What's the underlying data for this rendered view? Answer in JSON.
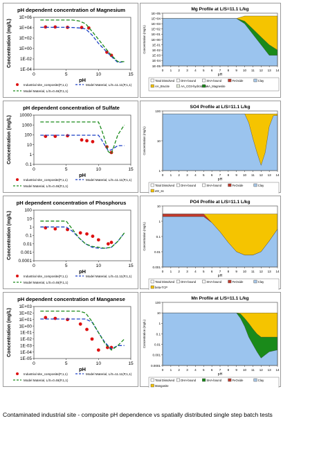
{
  "caption": "Contaminated industrial site - composite pH dependence vs spatially distributed single step batch tests",
  "chart_data": [
    {
      "type": "scatter",
      "title": "pH dependent concentration of Magnesium",
      "xlabel": "pH",
      "ylabel": "Concentration (mg/L)",
      "xlim": [
        0,
        14
      ],
      "xticks": [
        0,
        5,
        10,
        15
      ],
      "yscale": "log",
      "ylim": [
        0.0001,
        1000000.0
      ],
      "yticks": [
        0.0001,
        0.01,
        1,
        100.0,
        10000.0,
        1000000.0
      ],
      "yticklabels": [
        "1E-04",
        "1E-02",
        "1E+00",
        "1E+02",
        "1E+04",
        "1E+06"
      ],
      "series": [
        {
          "name": "Industrial site_composite(P,1,1)",
          "style": "points",
          "color": "#dd1111",
          "x": [
            1.8,
            3.3,
            5.2,
            7.4,
            8.5,
            11.3,
            12.0
          ],
          "y": [
            14000,
            14000,
            12000,
            11000,
            9000,
            0.2,
            0.05
          ]
        },
        {
          "name": "Model Material, L/S=11.11(P,1,1)",
          "style": "dash",
          "color": "#1a3fc4",
          "x": [
            1,
            2,
            3,
            4,
            5,
            6,
            7,
            8,
            9,
            10,
            11,
            12,
            13,
            14
          ],
          "y": [
            12000,
            12000,
            12000,
            12000,
            12000,
            11000,
            9000,
            6000,
            400,
            10,
            0.5,
            0.03,
            0.002,
            0.003
          ]
        },
        {
          "name": "Model Material, L/S=0.46(P,1,1)",
          "style": "dash",
          "color": "#1a8a1a",
          "x": [
            1,
            2,
            3,
            4,
            5,
            6,
            7,
            8,
            9,
            10,
            11,
            12,
            13,
            14
          ],
          "y": [
            300000,
            300000,
            300000,
            300000,
            300000,
            300000,
            200000,
            60000,
            2000,
            60,
            1.5,
            0.05,
            0.003,
            0.003
          ]
        }
      ]
    },
    {
      "type": "area",
      "title": "Mg Profile at L/S=11.1 L/kg",
      "xlabel": "pH",
      "ylabel": "Concentration (mg/L)",
      "xlim": [
        0,
        14
      ],
      "yscale": "log",
      "ylim": [
        1e-05,
        100000.0
      ],
      "yticklabels": [
        "1E-05",
        "1E-04",
        "1E-03",
        "1E-02",
        "1E-01",
        "1E+00",
        "1E+01",
        "1E+02",
        "1E+03",
        "1E+04",
        "1E+05"
      ],
      "legend": [
        "Total Dissolved",
        "DHA-bound",
        "SHA-bound",
        "FeOxide",
        "Clay",
        "AA_Brucite",
        "AA_CO3-hydrotalcite",
        "AA_Magnesite"
      ],
      "legend_colors": [
        "#ffffff",
        "#ffffff",
        "#ffffff",
        "#c0392b",
        "#a8c8e8",
        "#f5c400",
        "#e8f0e0",
        "#1a8a1a"
      ],
      "x": [
        0,
        1,
        2,
        3,
        4,
        5,
        6,
        7,
        8,
        9,
        10,
        11,
        12,
        13,
        14
      ],
      "layers": [
        {
          "name": "Total Dissolved",
          "color": "#9bc4ee",
          "top": [
            10000,
            10000,
            10000,
            10000,
            10000,
            10000,
            10000,
            10000,
            10000,
            10000,
            1000,
            10,
            0.1,
            0.001,
            0.001
          ]
        },
        {
          "name": "AA_Magnesite",
          "color": "#1a8a1a",
          "top": [
            10000,
            10000,
            10000,
            10000,
            10000,
            10000,
            10000,
            10000,
            10000,
            10000,
            3000,
            100,
            3,
            0.1,
            0.01
          ]
        },
        {
          "name": "AA_Brucite",
          "color": "#f5c400",
          "top": [
            10000,
            10000,
            10000,
            10000,
            10000,
            10000,
            10000,
            10000,
            10000,
            10000,
            30000,
            30000,
            30000,
            30000,
            30000
          ]
        }
      ]
    },
    {
      "type": "scatter",
      "title": "pH dependent concentration of Sulfate",
      "xlabel": "pH",
      "ylabel": "Concentration (mg/L)",
      "xlim": [
        0,
        14
      ],
      "xticks": [
        0,
        5,
        10,
        15
      ],
      "yscale": "log",
      "ylim": [
        0.1,
        10000
      ],
      "yticks": [
        0.1,
        1,
        10,
        100,
        1000,
        10000
      ],
      "yticklabels": [
        "0.1",
        "1",
        "10",
        "100",
        "1000",
        "10000"
      ],
      "series": [
        {
          "name": "Industrial site_composite(P,1,1)",
          "style": "points",
          "color": "#dd1111",
          "x": [
            1.8,
            3.3,
            5.2,
            7.4,
            8.2,
            9.1,
            11.3,
            12.0
          ],
          "y": [
            70,
            70,
            80,
            30,
            25,
            20,
            6,
            1.6
          ]
        },
        {
          "name": "Model Material, L/S=11.11(P,1,1)",
          "style": "dash",
          "color": "#1a3fc4",
          "x": [
            1,
            2,
            3,
            4,
            5,
            6,
            7,
            8,
            9,
            10,
            10.5,
            11,
            11.5,
            12,
            13,
            14
          ],
          "y": [
            90,
            90,
            90,
            90,
            90,
            90,
            90,
            90,
            90,
            90,
            30,
            8,
            2.5,
            3,
            8,
            8
          ]
        },
        {
          "name": "Model Material, L/S=0.46(P,1,1)",
          "style": "dash",
          "color": "#1a8a1a",
          "x": [
            1,
            2,
            3,
            4,
            5,
            6,
            7,
            8,
            9,
            10,
            10.5,
            11,
            11.5,
            12,
            13,
            14
          ],
          "y": [
            2000,
            2000,
            2000,
            2000,
            2000,
            2000,
            2000,
            2000,
            2000,
            2000,
            300,
            30,
            2,
            1.2,
            100,
            1000
          ]
        }
      ]
    },
    {
      "type": "area",
      "title": "SO4 Profile at L/S=11.1 L/kg",
      "xlabel": "pH",
      "ylabel": "Concentration (mg/L)",
      "xlim": [
        0,
        14
      ],
      "yscale": "log",
      "ylim": [
        1,
        100
      ],
      "yticklabels": [
        "1",
        "10",
        "100"
      ],
      "legend": [
        "Total Dissolved",
        "DHA-bound",
        "SHA-bound",
        "FeOxide",
        "Clay",
        "ettr_ss"
      ],
      "legend_colors": [
        "#ffffff",
        "#ffffff",
        "#ffffff",
        "#c0392b",
        "#a8c8e8",
        "#f5c400"
      ],
      "x": [
        0,
        9.5,
        10,
        10.5,
        11,
        11.5,
        12,
        12.5,
        13,
        13.5,
        14
      ],
      "layers": [
        {
          "name": "Total Dissolved",
          "color": "#9bc4ee",
          "top": [
            80,
            80,
            80,
            40,
            12,
            4,
            1.5,
            4,
            30,
            70,
            70
          ]
        },
        {
          "name": "ettr_ss",
          "color": "#f5c400",
          "top": [
            80,
            80,
            80,
            80,
            80,
            80,
            80,
            80,
            80,
            80,
            80
          ]
        }
      ]
    },
    {
      "type": "scatter",
      "title": "pH dependent concentration of Phosphorus",
      "xlabel": "pH",
      "ylabel": "Concentration (mg/L)",
      "xlim": [
        0,
        14
      ],
      "xticks": [
        0,
        5,
        10,
        15
      ],
      "yscale": "log",
      "ylim": [
        0.0001,
        100
      ],
      "yticks": [
        0.0001,
        0.001,
        0.01,
        0.1,
        1,
        10,
        100
      ],
      "yticklabels": [
        "0.0001",
        "0.001",
        "0.01",
        "0.1",
        "1",
        "10",
        "100"
      ],
      "series": [
        {
          "name": "Industrial site_composite(P,1,1)",
          "style": "points",
          "color": "#dd1111",
          "x": [
            1.8,
            3.3,
            5.2,
            7.2,
            8.2,
            9.1,
            10.0,
            11.5,
            12.0
          ],
          "y": [
            0.8,
            0.6,
            0.5,
            0.2,
            0.15,
            0.08,
            0.03,
            0.01,
            0.015
          ]
        },
        {
          "name": "Model Material, L/S=11.11(P,1,1)",
          "style": "dash",
          "color": "#1a3fc4",
          "x": [
            1,
            2,
            3,
            4,
            5,
            6,
            7,
            8,
            9,
            10,
            11,
            12,
            13,
            14
          ],
          "y": [
            1,
            1,
            1,
            1,
            1,
            0.3,
            0.05,
            0.01,
            0.004,
            0.003,
            0.003,
            0.004,
            0.02,
            0.2
          ]
        },
        {
          "name": "Model Material, L/S=0.46(P,1,1)",
          "style": "dash",
          "color": "#1a8a1a",
          "x": [
            1,
            2,
            3,
            4,
            5,
            6,
            7,
            8,
            9,
            10,
            11,
            12,
            13,
            14
          ],
          "y": [
            5,
            5,
            5,
            5,
            5,
            0.5,
            0.05,
            0.01,
            0.005,
            0.004,
            0.003,
            0.004,
            0.02,
            0.2
          ]
        }
      ]
    },
    {
      "type": "area",
      "title": "PO4 Profile at L/S=11.1 L/kg",
      "xlabel": "pH",
      "ylabel": "Concentration (mg/L)",
      "xlim": [
        0,
        14
      ],
      "yscale": "log",
      "ylim": [
        0.001,
        10
      ],
      "yticklabels": [
        "0.001",
        "0.01",
        "0.1",
        "1",
        "10"
      ],
      "legend": [
        "Total Dissolved",
        "DHA-bound",
        "SHA-bound",
        "FeOxide",
        "Clay",
        "beta-TCP"
      ],
      "legend_colors": [
        "#ffffff",
        "#ffffff",
        "#ffffff",
        "#c0392b",
        "#a8c8e8",
        "#f5c400"
      ],
      "x": [
        0,
        5,
        6,
        7,
        8,
        9,
        10,
        11,
        12,
        13,
        14
      ],
      "layers": [
        {
          "name": "Total Dissolved",
          "color": "#9bc4ee",
          "top": [
            2,
            2,
            0.8,
            0.2,
            0.04,
            0.01,
            0.006,
            0.006,
            0.01,
            0.05,
            0.3
          ]
        },
        {
          "name": "FeOxide",
          "color": "#c0392b",
          "top": [
            3,
            3,
            0.8,
            0.2,
            0.04,
            0.01,
            0.006,
            0.006,
            0.01,
            0.05,
            0.3
          ]
        },
        {
          "name": "beta-TCP",
          "color": "#f5c400",
          "top": [
            3,
            3,
            3,
            3,
            3,
            3,
            3,
            3,
            3,
            3,
            3
          ]
        }
      ]
    },
    {
      "type": "scatter",
      "title": "pH dependent concentration of Manganese",
      "xlabel": "pH",
      "ylabel": "Concentration (mg/L)",
      "xlim": [
        0,
        14
      ],
      "xticks": [
        0,
        5,
        10,
        15
      ],
      "yscale": "log",
      "ylim": [
        1e-05,
        1000.0
      ],
      "yticks": [
        1e-05,
        0.0001,
        0.001,
        0.01,
        0.1,
        1,
        10,
        100,
        1000
      ],
      "yticklabels": [
        "1E-05",
        "1E-04",
        "1E-03",
        "1E-02",
        "1E-01",
        "1E+00",
        "1E+01",
        "1E+02",
        "1E+03"
      ],
      "series": [
        {
          "name": "Industrial site_composite(P,1,1)",
          "style": "points",
          "color": "#dd1111",
          "x": [
            1.8,
            3.3,
            5.2,
            7.2,
            8.2,
            9.0,
            10.0,
            11.4,
            12.0
          ],
          "y": [
            20,
            15,
            10,
            2,
            0.3,
            0.01,
            0.0002,
            0.0005,
            0.0005
          ]
        },
        {
          "name": "Model Material, L/S=11.11(P,1,1)",
          "style": "dash",
          "color": "#1a3fc4",
          "x": [
            1,
            2,
            3,
            4,
            5,
            6,
            7,
            8,
            9,
            10,
            11,
            12,
            13,
            14
          ],
          "y": [
            12,
            12,
            12,
            12,
            12,
            12,
            12,
            12,
            4,
            0.1,
            0.003,
            0.0003,
            0.001,
            0.001
          ]
        },
        {
          "name": "Model Material, L/S=0.46(P,1,1)",
          "style": "dash",
          "color": "#1a8a1a",
          "x": [
            1,
            2,
            3,
            4,
            5,
            6,
            7,
            8,
            9,
            10,
            11,
            12,
            13,
            14
          ],
          "y": [
            200,
            200,
            200,
            200,
            200,
            200,
            200,
            100,
            5,
            0.1,
            0.002,
            0.0002,
            0.001,
            0.01
          ]
        }
      ]
    },
    {
      "type": "area",
      "title": "Mn Profile at L/S=11.1 L/kg",
      "xlabel": "pH",
      "ylabel": "Concentration (mg/L)",
      "xlim": [
        0,
        14
      ],
      "yscale": "log",
      "ylim": [
        0.0001,
        100
      ],
      "yticklabels": [
        "0.0001",
        "0.001",
        "0.01",
        "0.1",
        "1",
        "10",
        "100"
      ],
      "legend": [
        "Total Dissolved",
        "DHA-bound",
        "SHA-bound",
        "FeOxide",
        "Clay",
        "Manganite"
      ],
      "legend_colors": [
        "#ffffff",
        "#ffffff",
        "#1a8a1a",
        "#c0392b",
        "#a8c8e8",
        "#f5c400"
      ],
      "x": [
        0,
        9,
        9.5,
        10,
        10.5,
        11,
        11.5,
        12,
        12.5,
        13,
        14
      ],
      "layers": [
        {
          "name": "Total Dissolved",
          "color": "#9bc4ee",
          "top": [
            10,
            10,
            3,
            0.5,
            0.05,
            0.01,
            0.002,
            0.0005,
            0.001,
            0.002,
            0.003
          ]
        },
        {
          "name": "SHA-bound",
          "color": "#1a8a1a",
          "top": [
            10,
            10,
            8,
            3,
            1,
            0.3,
            0.1,
            0.05,
            0.05,
            0.05,
            0.05
          ]
        },
        {
          "name": "Manganite",
          "color": "#f5c400",
          "top": [
            10,
            10,
            10,
            10,
            10,
            10,
            10,
            10,
            10,
            10,
            10
          ]
        }
      ]
    }
  ]
}
